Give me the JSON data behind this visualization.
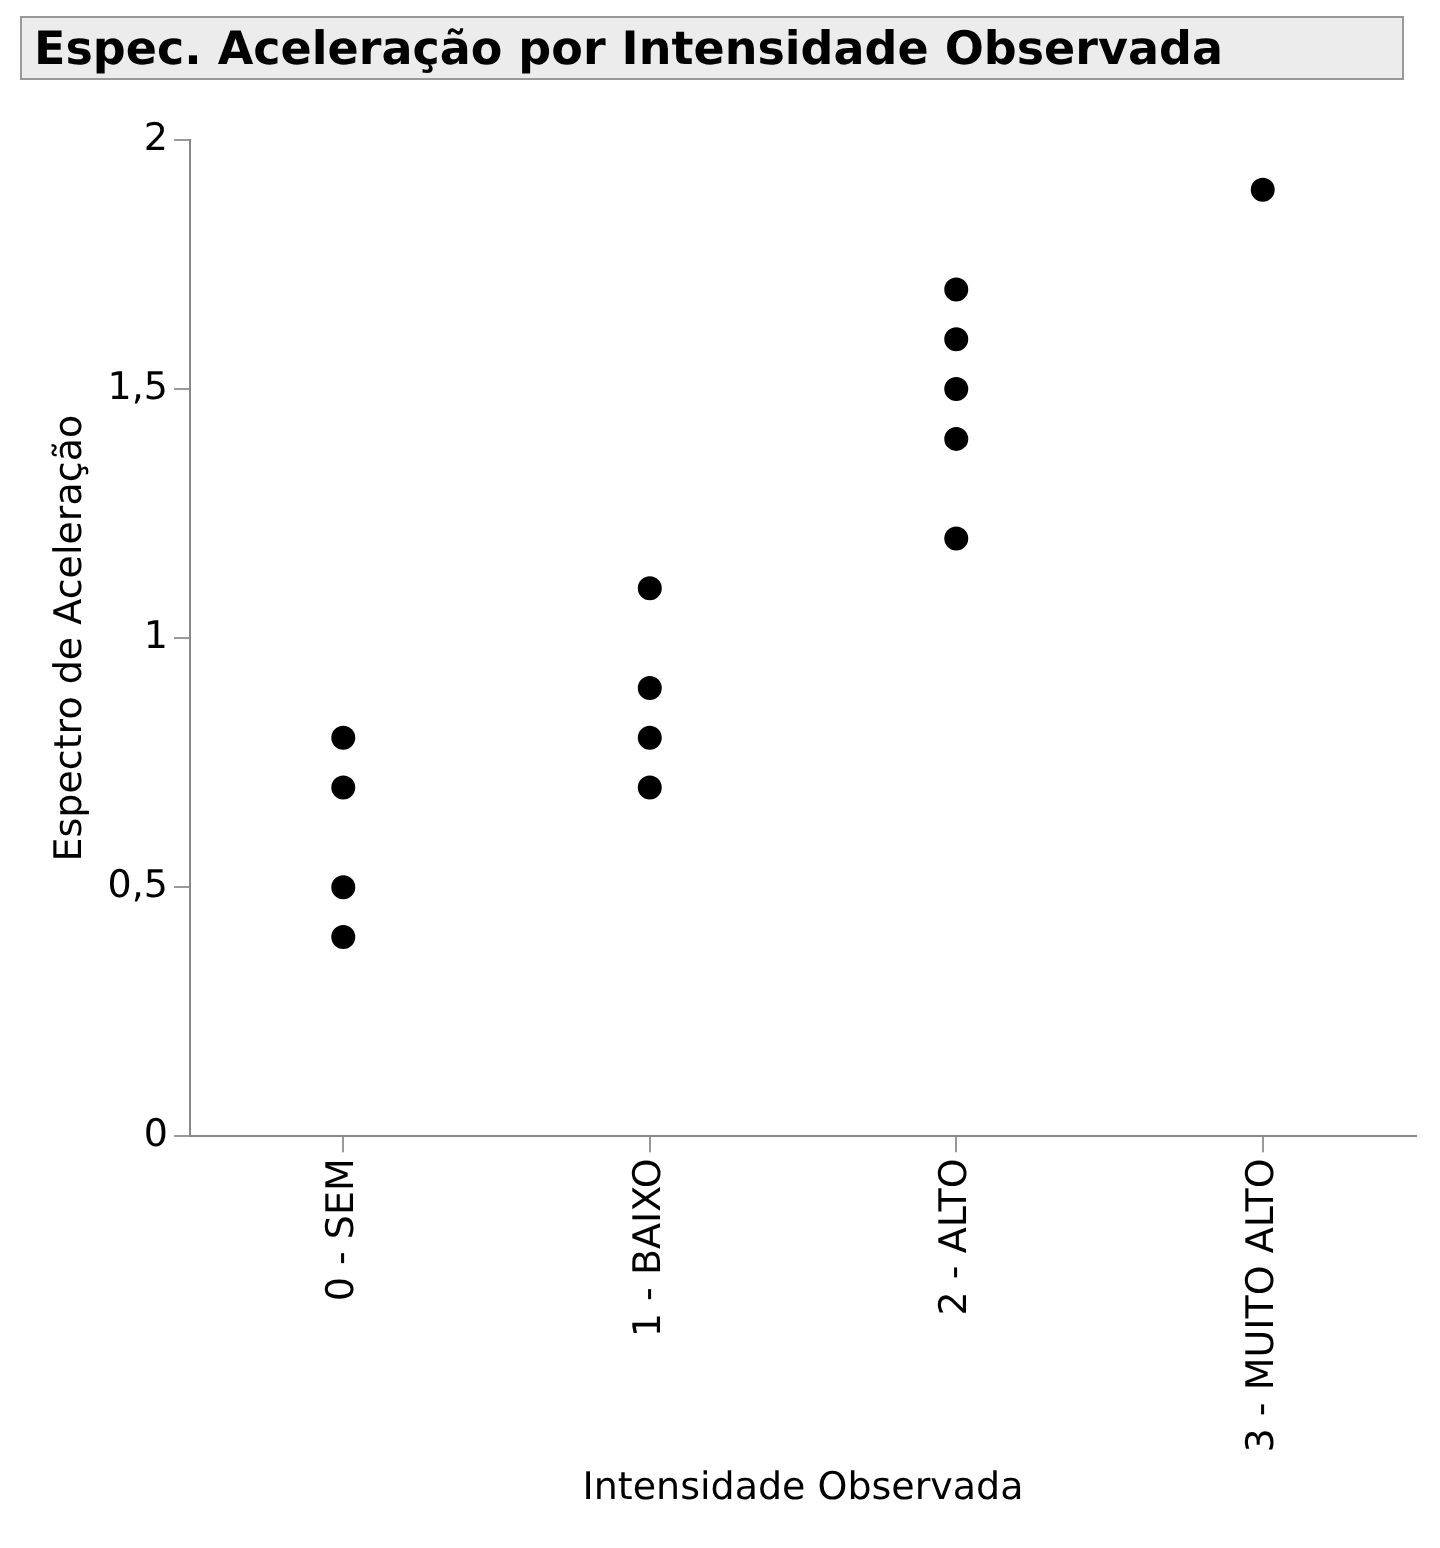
{
  "chart_data": {
    "type": "scatter",
    "title": "Espec. Aceleração por Intensidade Observada",
    "xlabel": "Intensidade Observada",
    "ylabel": "Espectro de Aceleração",
    "categories": [
      "0 - SEM",
      "1 - BAIXO",
      "2 - ALTO",
      "3 - MUITO ALTO"
    ],
    "series": [
      {
        "color": "#000000",
        "x": [
          "0 - SEM",
          "0 - SEM",
          "0 - SEM",
          "0 - SEM",
          "1 - BAIXO",
          "1 - BAIXO",
          "1 - BAIXO",
          "1 - BAIXO",
          "2 - ALTO",
          "2 - ALTO",
          "2 - ALTO",
          "2 - ALTO",
          "2 - ALTO",
          "3 - MUITO ALTO"
        ],
        "values": [
          0.8,
          0.7,
          0.5,
          0.4,
          1.1,
          0.9,
          0.8,
          0.7,
          1.7,
          1.6,
          1.5,
          1.4,
          1.2,
          1.9
        ]
      }
    ],
    "ylim": [
      0,
      2
    ],
    "yticks": [
      0,
      {
        "value": 0.5,
        "label": "0,5"
      },
      1,
      {
        "value": 1.5,
        "label": "1,5"
      },
      2
    ],
    "grid": false,
    "legend": false,
    "marker": "circle"
  }
}
